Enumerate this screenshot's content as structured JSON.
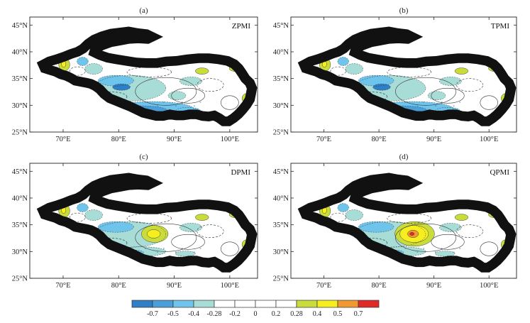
{
  "panels": [
    {
      "letter": "(a)",
      "index": "ZPMI",
      "south_field": "strong",
      "center_pos": "none"
    },
    {
      "letter": "(b)",
      "index": "TPMI",
      "south_field": "strong",
      "center_pos": "none"
    },
    {
      "letter": "(c)",
      "index": "DPMI",
      "south_field": "weak",
      "center_pos": "moderate"
    },
    {
      "letter": "(d)",
      "index": "QPMI",
      "south_field": "weak",
      "center_pos": "strong"
    }
  ],
  "axes": {
    "x_ticks": [
      "70°E",
      "80°E",
      "90°E",
      "100°E"
    ],
    "y_ticks": [
      "45°N",
      "40°N",
      "35°N",
      "30°N",
      "25°N"
    ],
    "lon_range": [
      64,
      105
    ],
    "lat_range": [
      25,
      46.5
    ]
  },
  "colorbar": {
    "colors": [
      "#2e7fc6",
      "#4a9fd9",
      "#6fc4ec",
      "#a8dcd6",
      "#ffffff",
      "#ffffff",
      "#ffffff",
      "#ffffff",
      "#c9dc3a",
      "#f6ee1e",
      "#f29830",
      "#e02a2a"
    ],
    "labels": [
      "-0.7",
      "-0.5",
      "-0.4",
      "-0.28",
      "-0.2",
      "0",
      "0.2",
      "0.28",
      "0.4",
      "0.5",
      "0.7"
    ]
  },
  "colors": {
    "neg_strong": "#2e7fc6",
    "neg_mid": "#4a9fd9",
    "neg_light": "#6fc4ec",
    "neg_faint": "#a8dcd6",
    "pos_faint": "#c9dc3a",
    "pos_mid": "#f6ee1e",
    "pos_strong": "#f29830",
    "pos_max": "#e02a2a"
  }
}
